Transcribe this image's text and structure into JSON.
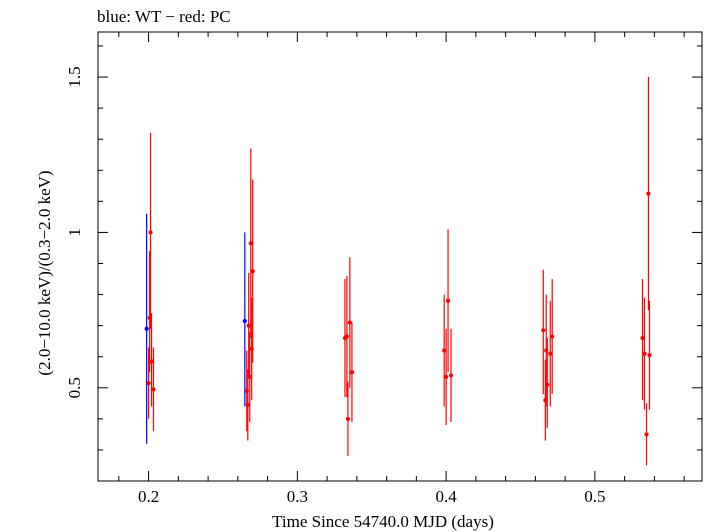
{
  "chart_data": {
    "type": "scatter",
    "title": "blue: WT − red: PC",
    "xlabel": "Time Since 54740.0 MJD (days)",
    "ylabel": "(2.0−10.0 keV)/(0.3−2.0 keV)",
    "xlim": [
      0.166,
      0.572
    ],
    "ylim": [
      0.2,
      1.645
    ],
    "x_ticks": [
      {
        "value": 0.2,
        "label": "0.2"
      },
      {
        "value": 0.3,
        "label": "0.3"
      },
      {
        "value": 0.4,
        "label": "0.4"
      },
      {
        "value": 0.5,
        "label": "0.5"
      }
    ],
    "y_ticks": [
      {
        "value": 0.5,
        "label": "0.5"
      },
      {
        "value": 1.0,
        "label": "1"
      },
      {
        "value": 1.5,
        "label": "1.5"
      }
    ],
    "grid": false,
    "series": [
      {
        "name": "WT",
        "color": "#0000ff",
        "points": [
          {
            "x": 0.1987,
            "y": 0.69,
            "ylo": 0.32,
            "yhi": 1.06
          },
          {
            "x": 0.2647,
            "y": 0.715,
            "ylo": 0.44,
            "yhi": 1.0
          }
        ]
      },
      {
        "name": "PC",
        "color": "#ff0000",
        "points": [
          {
            "x": 0.2,
            "y": 0.515,
            "ylo": 0.4,
            "yhi": 0.63
          },
          {
            "x": 0.2007,
            "y": 0.725,
            "ylo": 0.55,
            "yhi": 0.94
          },
          {
            "x": 0.2013,
            "y": 1.0,
            "ylo": 0.69,
            "yhi": 1.32
          },
          {
            "x": 0.202,
            "y": 0.585,
            "ylo": 0.44,
            "yhi": 0.74
          },
          {
            "x": 0.2033,
            "y": 0.495,
            "ylo": 0.36,
            "yhi": 0.63
          },
          {
            "x": 0.266,
            "y": 0.49,
            "ylo": 0.36,
            "yhi": 0.62
          },
          {
            "x": 0.2667,
            "y": 0.445,
            "ylo": 0.33,
            "yhi": 0.56
          },
          {
            "x": 0.2673,
            "y": 0.7,
            "ylo": 0.53,
            "yhi": 0.87
          },
          {
            "x": 0.268,
            "y": 0.535,
            "ylo": 0.39,
            "yhi": 0.68
          },
          {
            "x": 0.2687,
            "y": 0.965,
            "ylo": 0.66,
            "yhi": 1.27
          },
          {
            "x": 0.2693,
            "y": 0.625,
            "ylo": 0.46,
            "yhi": 0.79
          },
          {
            "x": 0.27,
            "y": 0.875,
            "ylo": 0.58,
            "yhi": 1.17
          },
          {
            "x": 0.332,
            "y": 0.66,
            "ylo": 0.47,
            "yhi": 0.85
          },
          {
            "x": 0.3333,
            "y": 0.665,
            "ylo": 0.47,
            "yhi": 0.86
          },
          {
            "x": 0.334,
            "y": 0.4,
            "ylo": 0.28,
            "yhi": 0.52
          },
          {
            "x": 0.3353,
            "y": 0.71,
            "ylo": 0.5,
            "yhi": 0.92
          },
          {
            "x": 0.3367,
            "y": 0.55,
            "ylo": 0.39,
            "yhi": 0.71
          },
          {
            "x": 0.3987,
            "y": 0.62,
            "ylo": 0.44,
            "yhi": 0.8
          },
          {
            "x": 0.4,
            "y": 0.535,
            "ylo": 0.38,
            "yhi": 0.69
          },
          {
            "x": 0.4013,
            "y": 0.78,
            "ylo": 0.55,
            "yhi": 1.01
          },
          {
            "x": 0.4033,
            "y": 0.54,
            "ylo": 0.39,
            "yhi": 0.69
          },
          {
            "x": 0.4653,
            "y": 0.685,
            "ylo": 0.48,
            "yhi": 0.88
          },
          {
            "x": 0.4667,
            "y": 0.46,
            "ylo": 0.33,
            "yhi": 0.59
          },
          {
            "x": 0.4673,
            "y": 0.62,
            "ylo": 0.44,
            "yhi": 0.8
          },
          {
            "x": 0.468,
            "y": 0.51,
            "ylo": 0.37,
            "yhi": 0.66
          },
          {
            "x": 0.47,
            "y": 0.61,
            "ylo": 0.44,
            "yhi": 0.78
          },
          {
            "x": 0.4713,
            "y": 0.665,
            "ylo": 0.48,
            "yhi": 0.85
          },
          {
            "x": 0.532,
            "y": 0.66,
            "ylo": 0.46,
            "yhi": 0.85
          },
          {
            "x": 0.5333,
            "y": 0.61,
            "ylo": 0.43,
            "yhi": 0.79
          },
          {
            "x": 0.5347,
            "y": 0.35,
            "ylo": 0.25,
            "yhi": 0.45
          },
          {
            "x": 0.536,
            "y": 1.125,
            "ylo": 0.75,
            "yhi": 1.5
          },
          {
            "x": 0.5367,
            "y": 0.605,
            "ylo": 0.43,
            "yhi": 0.78
          }
        ]
      }
    ]
  }
}
